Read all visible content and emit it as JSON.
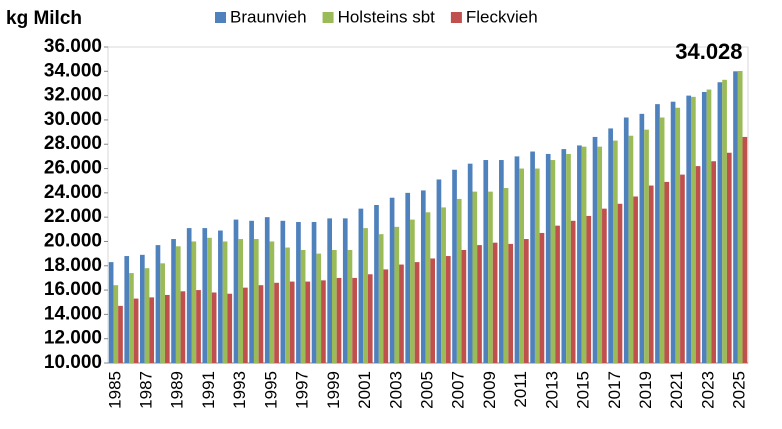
{
  "chart_data": {
    "type": "bar",
    "y_label": "kg Milch",
    "categories": [
      "1985",
      null,
      "1987",
      null,
      "1989",
      null,
      "1991",
      null,
      "1993",
      null,
      "1995",
      null,
      "1997",
      null,
      "1999",
      null,
      "2001",
      null,
      "2003",
      null,
      "2005",
      null,
      "2007",
      null,
      "2009",
      null,
      "2011",
      null,
      "2013",
      null,
      "2015",
      null,
      "2017",
      null,
      "2019",
      null,
      "2021",
      null,
      "2023",
      null,
      "2025"
    ],
    "series": [
      {
        "name": "Braunvieh",
        "color": "#4f81bd",
        "values": [
          18300,
          18800,
          18900,
          19700,
          20200,
          21100,
          21100,
          20900,
          21800,
          21700,
          22000,
          21700,
          21600,
          21600,
          21900,
          21900,
          22700,
          23000,
          23600,
          24000,
          24200,
          25100,
          25900,
          26400,
          26700,
          26700,
          27000,
          27400,
          27200,
          27600,
          27900,
          28600,
          29300,
          30200,
          30500,
          31300,
          31500,
          32000,
          32300,
          33100,
          34000
        ]
      },
      {
        "name": "Holsteins sbt",
        "color": "#9bbb59",
        "values": [
          16400,
          17400,
          17800,
          18200,
          19600,
          20000,
          20300,
          20000,
          20200,
          20200,
          20000,
          19500,
          19300,
          19000,
          19300,
          19300,
          21100,
          20600,
          21200,
          21800,
          22400,
          22800,
          23500,
          24100,
          24100,
          24400,
          26000,
          26000,
          26700,
          27200,
          27800,
          27800,
          28300,
          28700,
          29200,
          30200,
          31000,
          31900,
          32500,
          33300,
          34028
        ],
        "value_labels": [
          null,
          null,
          null,
          null,
          null,
          null,
          null,
          null,
          null,
          null,
          null,
          null,
          null,
          null,
          null,
          null,
          null,
          null,
          null,
          null,
          null,
          null,
          null,
          null,
          null,
          null,
          null,
          null,
          null,
          null,
          null,
          null,
          null,
          null,
          null,
          null,
          null,
          null,
          null,
          null,
          "34.028"
        ]
      },
      {
        "name": "Fleckvieh",
        "color": "#c0504d",
        "values": [
          14700,
          15300,
          15400,
          15600,
          15900,
          16000,
          15800,
          15700,
          16200,
          16400,
          16600,
          16700,
          16700,
          16800,
          17000,
          17000,
          17300,
          17700,
          18100,
          18300,
          18600,
          18800,
          19300,
          19700,
          19900,
          19800,
          20200,
          20700,
          21300,
          21700,
          22100,
          22700,
          23100,
          23700,
          24600,
          24900,
          25500,
          26200,
          26600,
          27300,
          28600
        ]
      }
    ],
    "ylim": [
      10000,
      36000
    ],
    "yticks": [
      {
        "value": 10000,
        "label": "10.000"
      },
      {
        "value": 12000,
        "label": "12.000"
      },
      {
        "value": 14000,
        "label": "14.000"
      },
      {
        "value": 16000,
        "label": "16.000"
      },
      {
        "value": 18000,
        "label": "18.000"
      },
      {
        "value": 20000,
        "label": "20.000"
      },
      {
        "value": 22000,
        "label": "22.000"
      },
      {
        "value": 24000,
        "label": "24.000"
      },
      {
        "value": 26000,
        "label": "26.000"
      },
      {
        "value": 28000,
        "label": "28.000"
      },
      {
        "value": 30000,
        "label": "30.000"
      },
      {
        "value": 32000,
        "label": "32.000"
      },
      {
        "value": 34000,
        "label": "34.000"
      },
      {
        "value": 36000,
        "label": "36.000"
      }
    ],
    "grid": false,
    "legend": "top"
  }
}
